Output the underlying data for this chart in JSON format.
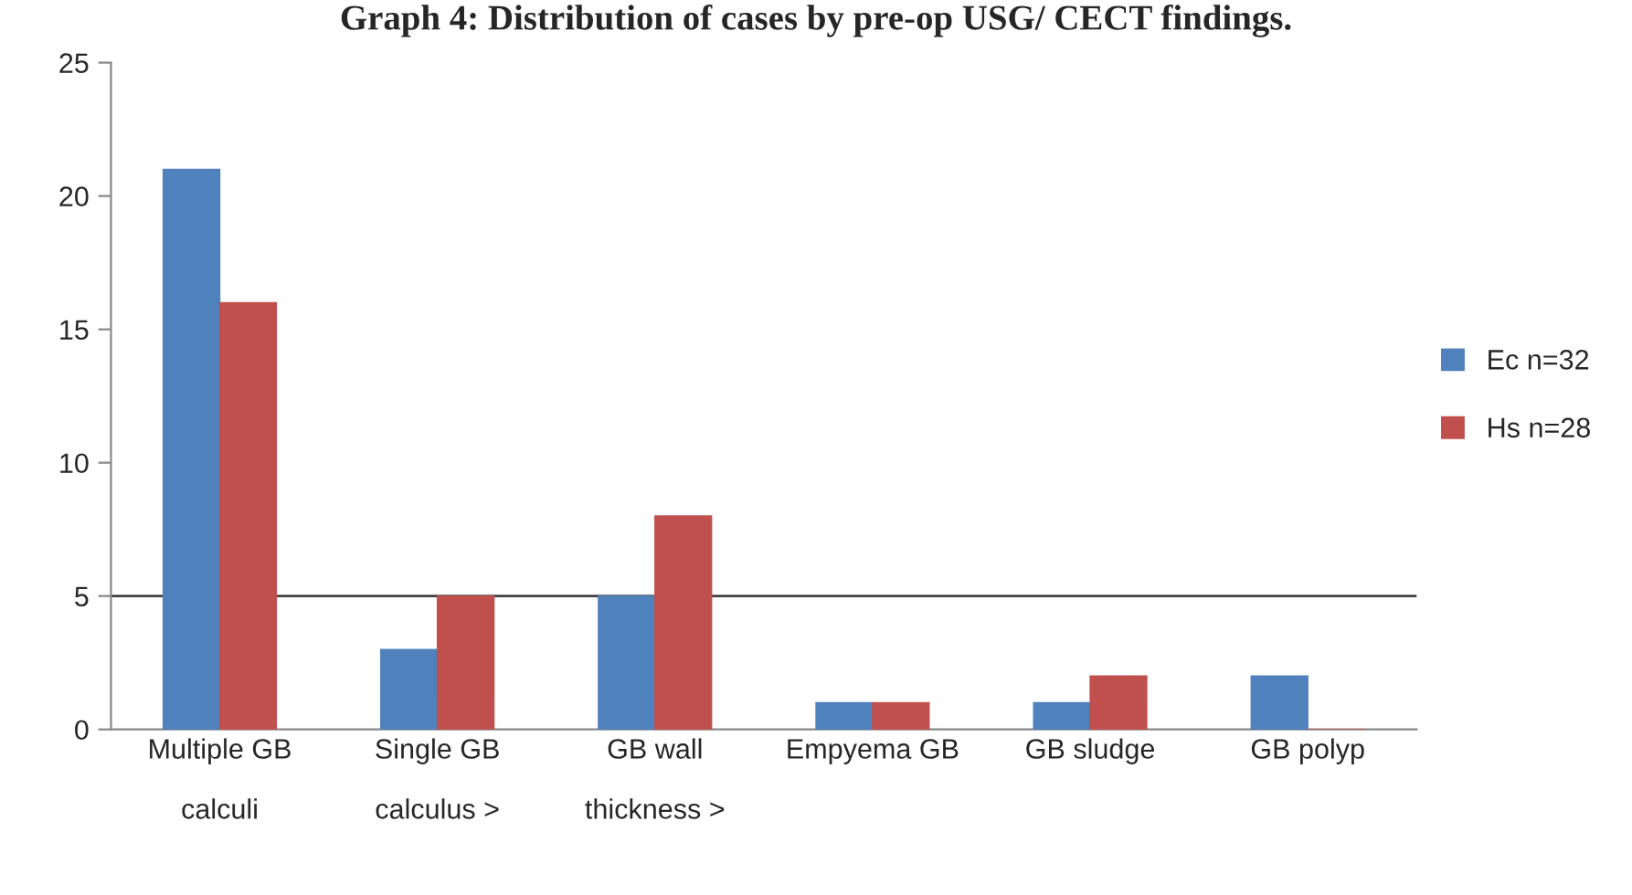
{
  "chart_data": {
    "type": "bar",
    "title": "Graph 4: Distribution of cases by pre-op USG/ CECT findings.",
    "categories": [
      "Multiple GB\n\ncalculi",
      "Single GB\n\ncalculus >",
      "GB wall\n\nthickness >",
      "Empyema GB",
      "GB sludge",
      "GB polyp"
    ],
    "series": [
      {
        "name": "Ec n=32",
        "color": "#4f81bd",
        "values": [
          21,
          3,
          5,
          1,
          1,
          2
        ]
      },
      {
        "name": "Hs n=28",
        "color": "#c0504d",
        "values": [
          16,
          5,
          8,
          1,
          2,
          0
        ]
      }
    ],
    "ylim": [
      0,
      25
    ],
    "yticks": [
      0,
      5,
      10,
      15,
      20,
      25
    ],
    "grid": false,
    "legend": "right",
    "ref_lines": [
      {
        "axis": "y",
        "value": 5,
        "color": "#404040"
      }
    ]
  }
}
